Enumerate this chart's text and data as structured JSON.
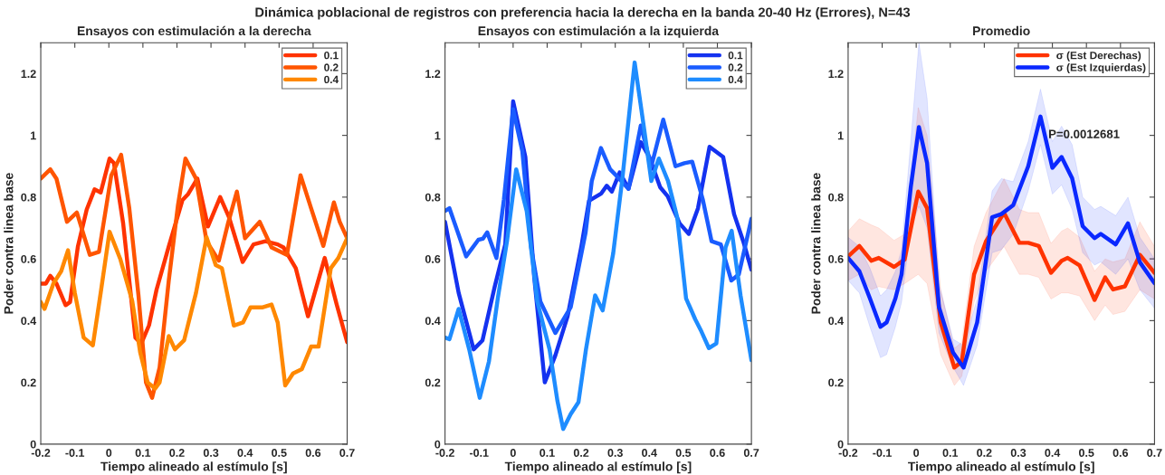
{
  "chart_data": [
    {
      "type": "line",
      "title": "Ensayos con estimulación a la derecha",
      "xlabel": "Tiempo alineado al estímulo [s]",
      "ylabel": "Poder contra linea base",
      "annotations": [
        "Dinámica poblacional de registros con preferencia hacia la derecha en la banda 20-40 Hz (Errores), N=43"
      ],
      "xlim": [
        -0.2,
        0.7
      ],
      "ylim": [
        0,
        1.3
      ],
      "xticks": [
        -0.2,
        -0.1,
        0,
        0.1,
        0.2,
        0.3,
        0.4,
        0.5,
        0.6,
        0.7
      ],
      "yticks": [
        0,
        0.2,
        0.4,
        0.6,
        0.8,
        1,
        1.2
      ],
      "grid": false,
      "legend": "top right",
      "series": [
        {
          "name": "0.1",
          "color": "#ff3300",
          "x": [
            -0.2,
            -0.185,
            -0.172,
            -0.154,
            -0.127,
            -0.114,
            -0.091,
            -0.065,
            -0.042,
            -0.024,
            0.002,
            0.015,
            0.042,
            0.078,
            0.095,
            0.118,
            0.14,
            0.176,
            0.216,
            0.233,
            0.26,
            0.291,
            0.327,
            0.353,
            0.393,
            0.425,
            0.46,
            0.496,
            0.513,
            0.549,
            0.585,
            0.634,
            0.669,
            0.7
          ],
          "values": [
            0.52,
            0.52,
            0.545,
            0.52,
            0.45,
            0.46,
            0.64,
            0.76,
            0.825,
            0.815,
            0.925,
            0.91,
            0.715,
            0.345,
            0.325,
            0.385,
            0.5,
            0.64,
            0.79,
            0.81,
            0.86,
            0.705,
            0.8,
            0.735,
            0.59,
            0.647,
            0.657,
            0.647,
            0.637,
            0.57,
            0.414,
            0.603,
            0.453,
            0.33
          ]
        },
        {
          "name": "0.2",
          "color": "#ff5500",
          "x": [
            -0.2,
            -0.172,
            -0.154,
            -0.123,
            -0.094,
            -0.056,
            -0.029,
            0.007,
            0.036,
            0.06,
            0.087,
            0.109,
            0.127,
            0.149,
            0.176,
            0.203,
            0.225,
            0.256,
            0.287,
            0.323,
            0.35,
            0.376,
            0.4,
            0.443,
            0.478,
            0.523,
            0.563,
            0.594,
            0.63,
            0.661,
            0.678,
            0.7
          ],
          "values": [
            0.86,
            0.89,
            0.86,
            0.72,
            0.75,
            0.613,
            0.623,
            0.87,
            0.937,
            0.764,
            0.482,
            0.2,
            0.15,
            0.248,
            0.53,
            0.774,
            0.925,
            0.86,
            0.657,
            0.594,
            0.715,
            0.818,
            0.667,
            0.72,
            0.637,
            0.613,
            0.871,
            0.764,
            0.642,
            0.783,
            0.72,
            0.667
          ]
        },
        {
          "name": "0.4",
          "color": "#ff8800",
          "x": [
            -0.2,
            -0.189,
            -0.163,
            -0.14,
            -0.12,
            -0.1,
            -0.074,
            -0.047,
            -0.024,
            0.002,
            0.034,
            0.069,
            0.092,
            0.114,
            0.136,
            0.149,
            0.176,
            0.194,
            0.221,
            0.256,
            0.287,
            0.314,
            0.332,
            0.367,
            0.394,
            0.416,
            0.452,
            0.478,
            0.496,
            0.518,
            0.541,
            0.567,
            0.594,
            0.616,
            0.652,
            0.674,
            0.7
          ],
          "values": [
            0.46,
            0.438,
            0.52,
            0.56,
            0.628,
            0.49,
            0.345,
            0.32,
            0.49,
            0.688,
            0.598,
            0.462,
            0.297,
            0.2,
            0.18,
            0.2,
            0.35,
            0.307,
            0.336,
            0.49,
            0.67,
            0.58,
            0.57,
            0.384,
            0.394,
            0.443,
            0.443,
            0.452,
            0.394,
            0.19,
            0.229,
            0.243,
            0.316,
            0.316,
            0.57,
            0.603,
            0.667
          ]
        }
      ]
    },
    {
      "type": "line",
      "title": "Ensayos con estimulación a la izquierda",
      "xlabel": "Tiempo alineado al estímulo [s]",
      "xlim": [
        -0.2,
        0.7
      ],
      "ylim": [
        0,
        1.3
      ],
      "xticks": [
        -0.2,
        -0.1,
        0,
        0.1,
        0.2,
        0.3,
        0.4,
        0.5,
        0.6,
        0.7
      ],
      "yticks": [
        0,
        0.2,
        0.4,
        0.6,
        0.8,
        1,
        1.2
      ],
      "grid": false,
      "legend": "top right",
      "series": [
        {
          "name": "0.1",
          "color": "#1432f0",
          "x": [
            -0.2,
            -0.16,
            -0.116,
            -0.09,
            -0.054,
            -0.023,
            0.0,
            0.036,
            0.062,
            0.093,
            0.124,
            0.16,
            0.2,
            0.223,
            0.259,
            0.275,
            0.29,
            0.313,
            0.339,
            0.375,
            0.4,
            0.432,
            0.454,
            0.489,
            0.516,
            0.543,
            0.577,
            0.617,
            0.649,
            0.676,
            0.7
          ],
          "values": [
            0.72,
            0.49,
            0.307,
            0.336,
            0.51,
            0.647,
            1.11,
            0.93,
            0.54,
            0.2,
            0.287,
            0.414,
            0.637,
            0.788,
            0.812,
            0.837,
            0.818,
            0.88,
            0.827,
            0.978,
            0.93,
            0.832,
            0.803,
            0.715,
            0.681,
            0.764,
            0.963,
            0.93,
            0.745,
            0.657,
            0.565
          ]
        },
        {
          "name": "0.2",
          "color": "#1a5cff",
          "x": [
            -0.2,
            -0.187,
            -0.138,
            -0.102,
            -0.089,
            -0.076,
            -0.049,
            -0.027,
            0.0,
            0.027,
            0.053,
            0.08,
            0.124,
            0.169,
            0.213,
            0.231,
            0.258,
            0.285,
            0.302,
            0.339,
            0.375,
            0.406,
            0.441,
            0.477,
            0.503,
            0.526,
            0.557,
            0.583,
            0.61,
            0.641,
            0.663,
            0.7
          ],
          "values": [
            0.755,
            0.764,
            0.608,
            0.662,
            0.665,
            0.686,
            0.603,
            0.793,
            1.085,
            0.949,
            0.637,
            0.462,
            0.36,
            0.443,
            0.686,
            0.852,
            0.959,
            0.89,
            0.871,
            0.827,
            1.032,
            0.9,
            1.051,
            0.9,
            0.91,
            0.915,
            0.793,
            0.657,
            0.647,
            0.53,
            0.55,
            0.73
          ]
        },
        {
          "name": "0.4",
          "color": "#1e8cff",
          "x": [
            -0.2,
            -0.187,
            -0.16,
            -0.129,
            -0.098,
            -0.071,
            -0.045,
            -0.018,
            0.009,
            0.04,
            0.071,
            0.107,
            0.13,
            0.147,
            0.169,
            0.192,
            0.214,
            0.241,
            0.263,
            0.294,
            0.321,
            0.357,
            0.384,
            0.406,
            0.428,
            0.455,
            0.482,
            0.508,
            0.535,
            0.553,
            0.575,
            0.597,
            0.624,
            0.642,
            0.668,
            0.7
          ],
          "values": [
            0.345,
            0.34,
            0.438,
            0.307,
            0.15,
            0.268,
            0.472,
            0.657,
            0.89,
            0.754,
            0.462,
            0.307,
            0.141,
            0.049,
            0.097,
            0.136,
            0.307,
            0.482,
            0.433,
            0.618,
            0.861,
            1.236,
            1.027,
            0.852,
            0.925,
            0.852,
            0.735,
            0.472,
            0.404,
            0.365,
            0.311,
            0.326,
            0.637,
            0.691,
            0.482,
            0.272
          ]
        }
      ]
    },
    {
      "type": "line",
      "title": "Promedio",
      "xlabel": "Tiempo alineado al estímulo [s]",
      "ylabel": "Poder contra linea base",
      "annotations": [
        "P=0.0012681"
      ],
      "xlim": [
        -0.2,
        0.7
      ],
      "ylim": [
        0,
        1.3
      ],
      "xticks": [
        -0.2,
        -0.1,
        0,
        0.1,
        0.2,
        0.3,
        0.4,
        0.5,
        0.6,
        0.7
      ],
      "yticks": [
        0,
        0.2,
        0.4,
        0.6,
        0.8,
        1,
        1.2
      ],
      "grid": false,
      "legend": "top right",
      "series": [
        {
          "name": "σ (Est Derechas)",
          "color": "#ff3300",
          "x": [
            -0.2,
            -0.167,
            -0.132,
            -0.11,
            -0.065,
            -0.034,
            0.006,
            0.032,
            0.072,
            0.112,
            0.134,
            0.17,
            0.205,
            0.258,
            0.303,
            0.329,
            0.36,
            0.396,
            0.427,
            0.445,
            0.48,
            0.524,
            0.555,
            0.578,
            0.613,
            0.657,
            0.7
          ],
          "values": [
            0.608,
            0.642,
            0.594,
            0.603,
            0.574,
            0.598,
            0.818,
            0.764,
            0.394,
            0.248,
            0.268,
            0.55,
            0.657,
            0.749,
            0.652,
            0.652,
            0.642,
            0.555,
            0.594,
            0.603,
            0.579,
            0.467,
            0.54,
            0.501,
            0.511,
            0.613,
            0.555
          ],
          "upper": [
            0.69,
            0.73,
            0.71,
            0.7,
            0.66,
            0.68,
            1.09,
            1.0,
            0.5,
            0.31,
            0.33,
            0.64,
            0.75,
            0.86,
            0.76,
            0.75,
            0.75,
            0.65,
            0.69,
            0.7,
            0.67,
            0.56,
            0.6,
            0.59,
            0.6,
            0.72,
            0.64
          ],
          "lower": [
            0.53,
            0.55,
            0.5,
            0.51,
            0.5,
            0.52,
            0.55,
            0.52,
            0.29,
            0.19,
            0.22,
            0.46,
            0.56,
            0.64,
            0.55,
            0.55,
            0.54,
            0.47,
            0.49,
            0.49,
            0.48,
            0.4,
            0.45,
            0.42,
            0.43,
            0.5,
            0.47
          ]
        },
        {
          "name": "σ (Est Izquierdas)",
          "color": "#0a28ff",
          "x": [
            -0.2,
            -0.167,
            -0.136,
            -0.105,
            -0.087,
            -0.061,
            -0.043,
            -0.016,
            0.008,
            0.032,
            0.067,
            0.108,
            0.139,
            0.179,
            0.223,
            0.25,
            0.285,
            0.329,
            0.365,
            0.4,
            0.427,
            0.458,
            0.489,
            0.524,
            0.542,
            0.586,
            0.622,
            0.657,
            0.7
          ],
          "values": [
            0.603,
            0.56,
            0.472,
            0.38,
            0.394,
            0.472,
            0.55,
            0.832,
            1.027,
            0.91,
            0.443,
            0.297,
            0.248,
            0.394,
            0.735,
            0.745,
            0.774,
            0.9,
            1.061,
            0.895,
            0.93,
            0.861,
            0.706,
            0.667,
            0.681,
            0.647,
            0.715,
            0.589,
            0.521
          ],
          "upper": [
            0.67,
            0.64,
            0.57,
            0.48,
            0.5,
            0.56,
            0.63,
            0.98,
            1.3,
            1.12,
            0.52,
            0.34,
            0.32,
            0.47,
            0.82,
            0.86,
            0.85,
            0.98,
            1.15,
            0.98,
            1.03,
            0.97,
            0.8,
            0.76,
            0.77,
            0.74,
            0.8,
            0.67,
            0.6
          ],
          "lower": [
            0.53,
            0.49,
            0.38,
            0.28,
            0.29,
            0.38,
            0.46,
            0.7,
            0.77,
            0.7,
            0.36,
            0.25,
            0.19,
            0.32,
            0.62,
            0.63,
            0.68,
            0.82,
            0.97,
            0.81,
            0.84,
            0.76,
            0.62,
            0.58,
            0.59,
            0.55,
            0.6,
            0.5,
            0.44
          ]
        }
      ]
    }
  ]
}
